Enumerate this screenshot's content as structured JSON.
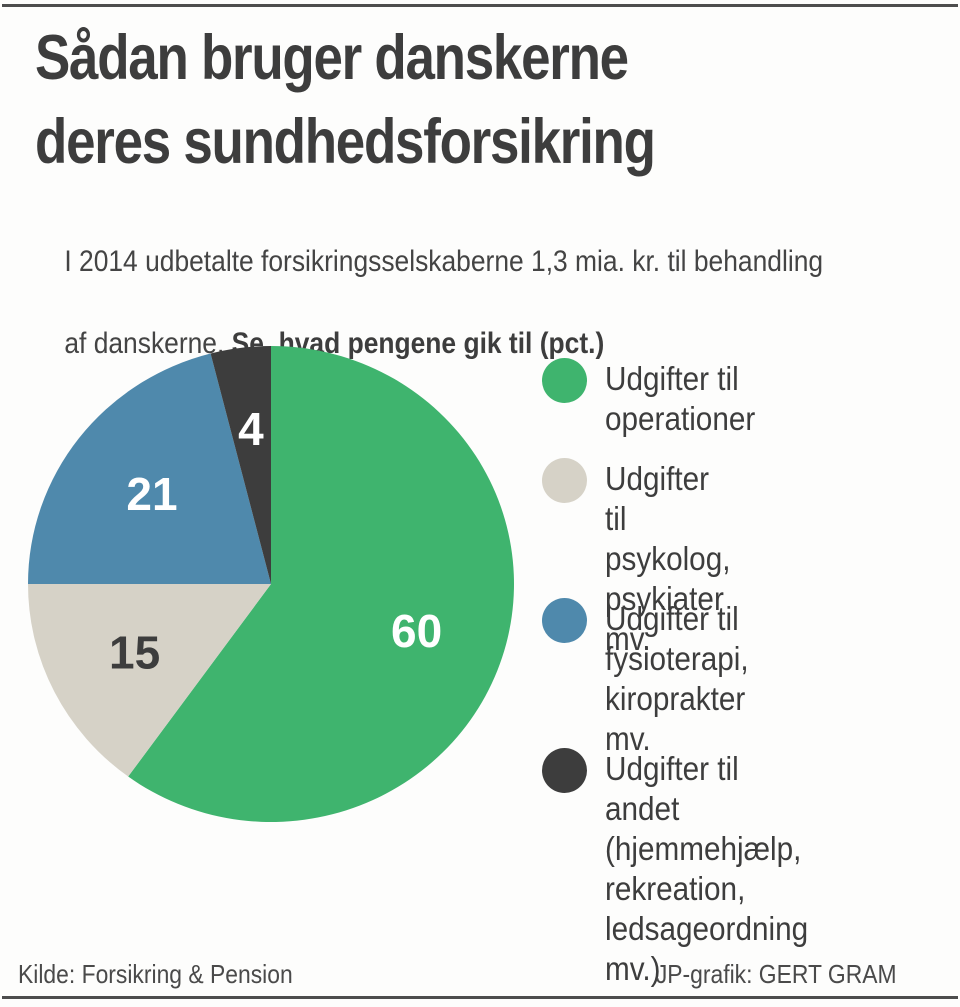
{
  "header": {
    "title_line1": "Sådan bruger danskerne",
    "title_line2": "deres sundhedsforsikring",
    "subtitle_line1": "I 2014 udbetalte forsikringsselskaberne 1,3 mia. kr. til behandling",
    "subtitle_line2_regular": "af danskerne. ",
    "subtitle_line2_bold": "Se, hvad pengene gik til (pct.)"
  },
  "chart_data": {
    "type": "pie",
    "title": "Sådan bruger danskerne deres sundhedsforsikring",
    "unit": "pct.",
    "start_angle_deg": 0,
    "direction": "clockwise",
    "legend_position": "right",
    "slices": [
      {
        "key": "operationer",
        "label": "Udgifter til operationer",
        "value": 60,
        "color": "#3fb46e",
        "label_color": "#ffffff"
      },
      {
        "key": "psykolog",
        "label": "Udgifter til psykolog, psykiater mv.",
        "value": 15,
        "color": "#d6d2c7",
        "label_color": "#3d3d3d"
      },
      {
        "key": "fysioterapi",
        "label": "Udgifter til fysioterapi, kiroprakter mv.",
        "value": 21,
        "color": "#4f89ac",
        "label_color": "#ffffff"
      },
      {
        "key": "andet",
        "label": "Udgifter til andet (hjemmehjælp, rekreation, ledsageordning mv.)",
        "value": 4,
        "color": "#3d3d3d",
        "label_color": "#ffffff"
      }
    ]
  },
  "legend": {
    "items": [
      {
        "key": "operationer",
        "label": "Udgifter til operationer",
        "color": "#3fb46e"
      },
      {
        "key": "psykolog",
        "label": "Udgifter til psykolog,\npsykiater mv.",
        "color": "#d6d2c7"
      },
      {
        "key": "fysioterapi",
        "label": "Udgifter til fysioterapi,\nkiroprakter mv.",
        "color": "#4f89ac"
      },
      {
        "key": "andet",
        "label": "Udgifter til andet\n(hjemmehjælp,\nrekreation,\nledsageordning mv.)",
        "color": "#3d3d3d"
      }
    ]
  },
  "footer": {
    "source": "Kilde: Forsikring & Pension",
    "credit": "JP-grafik: GERT GRAM"
  }
}
